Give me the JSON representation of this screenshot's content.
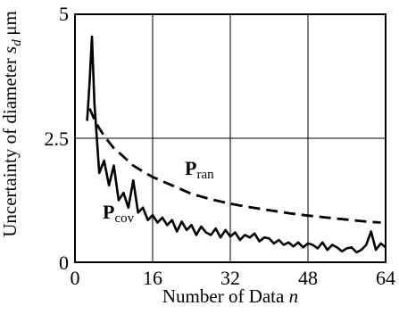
{
  "chart_data": {
    "type": "line",
    "xlabel": "Number of Data n",
    "ylabel": "Uncertainty of diameter s_d",
    "yunit": "μm",
    "xlim": [
      0,
      64
    ],
    "ylim": [
      0,
      5
    ],
    "xticks": [
      "0",
      "16",
      "32",
      "48",
      "64"
    ],
    "yticks": [
      "0",
      "2.5",
      "5"
    ],
    "grid": true,
    "series": [
      {
        "name": "P_ran",
        "style": "dashed",
        "x": [
          3,
          4,
          5,
          6,
          8,
          10,
          12,
          14,
          16,
          20,
          24,
          28,
          32,
          36,
          40,
          44,
          48,
          52,
          56,
          60,
          63
        ],
        "y": [
          3.1,
          2.88,
          2.7,
          2.55,
          2.3,
          2.13,
          1.95,
          1.83,
          1.72,
          1.55,
          1.38,
          1.27,
          1.18,
          1.11,
          1.05,
          0.99,
          0.94,
          0.9,
          0.86,
          0.82,
          0.8
        ]
      },
      {
        "name": "P_cov",
        "style": "solid",
        "x": [
          2.5,
          3,
          3.5,
          4,
          5,
          6,
          7,
          8,
          9,
          10,
          11,
          12,
          13,
          14,
          15,
          16,
          17,
          18,
          19,
          20,
          21,
          22,
          23,
          24,
          25,
          26,
          27,
          28,
          29,
          30,
          31,
          32,
          33,
          34,
          35,
          36,
          37,
          38,
          39,
          40,
          41,
          42,
          43,
          44,
          45,
          46,
          47,
          48,
          49,
          50,
          51,
          52,
          53,
          54,
          55,
          56,
          57,
          58,
          59,
          60,
          61,
          62,
          63,
          64
        ],
        "y": [
          2.85,
          3.6,
          4.55,
          3.2,
          1.8,
          2.05,
          1.55,
          1.95,
          1.25,
          1.4,
          1.1,
          1.65,
          1.0,
          1.1,
          0.85,
          0.95,
          0.8,
          0.9,
          0.75,
          0.85,
          0.62,
          0.82,
          0.65,
          0.75,
          0.55,
          0.72,
          0.6,
          0.55,
          0.68,
          0.5,
          0.65,
          0.52,
          0.6,
          0.45,
          0.55,
          0.5,
          0.58,
          0.42,
          0.5,
          0.48,
          0.38,
          0.45,
          0.35,
          0.4,
          0.32,
          0.4,
          0.3,
          0.38,
          0.35,
          0.28,
          0.4,
          0.25,
          0.35,
          0.3,
          0.22,
          0.28,
          0.3,
          0.2,
          0.25,
          0.35,
          0.62,
          0.25,
          0.38,
          0.3
        ]
      }
    ],
    "annotations": [
      {
        "text": "P",
        "sub": "ran",
        "series": "P_ran"
      },
      {
        "text": "P",
        "sub": "cov",
        "series": "P_cov"
      }
    ]
  }
}
